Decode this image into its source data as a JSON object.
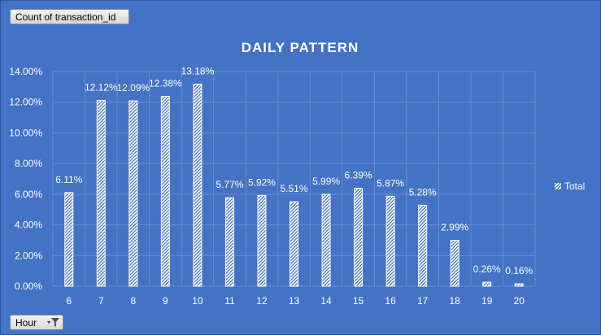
{
  "pivot": {
    "values_button_label": "Count of transaction_id",
    "axis_button_label": "Hour"
  },
  "colors": {
    "background": "#4472c4",
    "bar_fill": "#ffffff",
    "gridline": "#6a8fd3",
    "text": "#ffffff"
  },
  "icons": {
    "axis_button_icon": "dropdown-filter-icon"
  },
  "chart_data": {
    "type": "bar",
    "title": "DAILY PATTERN",
    "xlabel": "",
    "ylabel": "",
    "categories": [
      "6",
      "7",
      "8",
      "9",
      "10",
      "11",
      "12",
      "13",
      "14",
      "15",
      "16",
      "17",
      "18",
      "19",
      "20"
    ],
    "series": [
      {
        "name": "Total",
        "values": [
          0.0611,
          0.1212,
          0.1209,
          0.1238,
          0.1318,
          0.0577,
          0.0592,
          0.0551,
          0.0599,
          0.0639,
          0.0587,
          0.0528,
          0.0299,
          0.0026,
          0.0016
        ],
        "labels": [
          "6.11%",
          "12.12%",
          "12.09%",
          "12.38%",
          "13.18%",
          "5.77%",
          "5.92%",
          "5.51%",
          "5.99%",
          "6.39%",
          "5.87%",
          "5.28%",
          "2.99%",
          "0.26%",
          "0.16%"
        ],
        "fill": "white diagonal hatch"
      }
    ],
    "ylim": [
      0,
      0.14
    ],
    "y_ticks": [
      0,
      0.02,
      0.04,
      0.06,
      0.08,
      0.1,
      0.12,
      0.14
    ],
    "y_tick_labels": [
      "0.00%",
      "2.00%",
      "4.00%",
      "6.00%",
      "8.00%",
      "10.00%",
      "12.00%",
      "14.00%"
    ],
    "grid": true,
    "legend": "right"
  }
}
